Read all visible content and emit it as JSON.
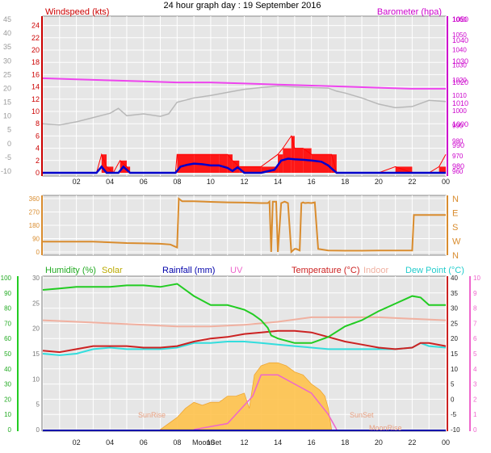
{
  "title": "24 hour graph day : 19 September 2016",
  "colors": {
    "wind_axis": "#cc0000",
    "baro_axis": "#cc00cc",
    "gust": "#ff0000",
    "wind": "#0000cc",
    "baro": "#ee44ee",
    "wind_gray": "#b8b8b8",
    "direction": "#d98c2e",
    "humidity": "#22cc22",
    "solar": "#ccbb00",
    "solar_fill": "#ffc34d",
    "rainfall": "#0000aa",
    "uv": "#ee66cc",
    "temperature": "#cc2222",
    "indoor": "#f0b0a0",
    "dewpoint": "#33dddd",
    "grid": "#ffffff",
    "plot_bg": "#e6e6e6"
  },
  "chart_data": [
    {
      "type": "line",
      "title": "24 hour graph day : 19 September 2016",
      "left_axis_label": "Windspeed (kts)",
      "right_axis_label": "Barometer (hpa)",
      "x_ticks": [
        "02",
        "04",
        "06",
        "08",
        "10",
        "12",
        "14",
        "16",
        "18",
        "20",
        "22",
        "00"
      ],
      "left_ticks": [
        "0",
        "2",
        "4",
        "6",
        "8",
        "10",
        "12",
        "14",
        "16",
        "18",
        "20",
        "22",
        "24"
      ],
      "left_ylim": [
        0,
        25
      ],
      "right_ticks": [
        "980",
        "990",
        "1000",
        "1010",
        "1020",
        "1030",
        "1040",
        "1050"
      ],
      "right_ylim": [
        977,
        1050
      ],
      "outer_left_ticks": [
        "-10",
        "-5",
        "0",
        "5",
        "10",
        "15",
        "20",
        "25",
        "30",
        "35",
        "40",
        "45"
      ],
      "outer_right_ticks": [
        "960",
        "970",
        "980",
        "990",
        "1000",
        "1010",
        "1020",
        "1030",
        "1040",
        "1050",
        "1060"
      ],
      "series": [
        {
          "name": "Barometer",
          "axis": "right",
          "x": [
            0,
            2,
            4,
            6,
            8,
            10,
            12,
            14,
            16,
            18,
            20,
            22,
            24
          ],
          "values": [
            1022,
            1021.5,
            1021,
            1020.5,
            1020,
            1020,
            1019.5,
            1019,
            1018.5,
            1018,
            1017.5,
            1017,
            1017
          ]
        },
        {
          "name": "Wind (gray)",
          "axis": "left",
          "x": [
            0,
            1,
            2,
            3,
            4,
            4.5,
            5,
            6,
            7,
            7.5,
            8,
            9,
            10,
            11,
            12,
            13,
            14,
            15,
            16,
            17,
            17.5,
            18,
            19,
            20,
            21,
            22,
            23,
            24
          ],
          "values": [
            8,
            7.8,
            8.3,
            9,
            9.7,
            10.5,
            9.3,
            9.6,
            9.2,
            9.6,
            11.5,
            12.2,
            12.6,
            13.1,
            13.6,
            13.9,
            14.1,
            14.0,
            13.9,
            13.8,
            13.3,
            13.0,
            12.2,
            11.2,
            10.6,
            10.8,
            11.8,
            11.6
          ]
        },
        {
          "name": "Gust",
          "axis": "left",
          "x": [
            0,
            3.2,
            3.5,
            3.8,
            4.2,
            4.6,
            5.0,
            5.2,
            7.9,
            8,
            9,
            10,
            10.5,
            11,
            11.3,
            11.7,
            12,
            13,
            14,
            14.3,
            14.8,
            15,
            15.5,
            16,
            17,
            17.2,
            17.5,
            18,
            19,
            20,
            21,
            22,
            23,
            23.6,
            24
          ],
          "values": [
            0,
            0,
            3,
            1,
            0,
            2,
            1,
            0,
            0,
            3,
            3,
            3,
            3,
            3,
            2,
            1,
            1,
            1,
            3,
            4,
            6,
            4,
            4,
            3,
            3,
            3,
            0,
            0,
            0,
            0,
            1,
            0,
            0,
            1,
            3
          ]
        },
        {
          "name": "Wind",
          "axis": "left",
          "x": [
            0,
            3.2,
            3.5,
            3.8,
            4.5,
            4.8,
            5.2,
            7.9,
            8.2,
            8.6,
            9,
            9.5,
            10,
            10.5,
            11,
            11.3,
            11.6,
            12,
            13,
            13.8,
            14.2,
            14.6,
            15,
            15.6,
            16,
            16.6,
            17,
            17.2,
            17.5,
            18,
            24
          ],
          "values": [
            0,
            0,
            1,
            0,
            0,
            1,
            0,
            0,
            1,
            1.3,
            1.5,
            1.4,
            1.2,
            1.2,
            0.8,
            0.3,
            0.9,
            0,
            0,
            0.5,
            2,
            2.3,
            2.2,
            2.1,
            2,
            1.8,
            1.2,
            0.7,
            0,
            0,
            0
          ]
        }
      ]
    },
    {
      "type": "line",
      "title": "",
      "y_ticks": [
        "0",
        "90",
        "180",
        "270",
        "360"
      ],
      "ylim": [
        0,
        360
      ],
      "right_labels": [
        "N",
        "W",
        "S",
        "E",
        "N"
      ],
      "series": [
        {
          "name": "Wind direction",
          "x": [
            0,
            1,
            2,
            3,
            4,
            5,
            6,
            7,
            7.6,
            7.8,
            8,
            8.1,
            8.3,
            9,
            10,
            11,
            12,
            13,
            13.4,
            13.5,
            13.6,
            13.7,
            13.9,
            14,
            14.2,
            14.4,
            14.5,
            14.6,
            14.8,
            15,
            15.1,
            15.3,
            15.4,
            15.5,
            15.6,
            15.8,
            16,
            16.2,
            16.4,
            17,
            18,
            19,
            20,
            21,
            21.5,
            22,
            22.1,
            23,
            24
          ],
          "values": [
            70,
            70,
            70,
            70,
            65,
            60,
            58,
            55,
            50,
            40,
            30,
            360,
            342,
            342,
            338,
            335,
            333,
            330,
            330,
            340,
            0,
            340,
            340,
            0,
            330,
            340,
            335,
            330,
            0,
            20,
            20,
            10,
            330,
            335,
            330,
            332,
            330,
            335,
            20,
            10,
            8,
            8,
            10,
            10,
            10,
            10,
            250,
            250,
            250
          ]
        }
      ]
    },
    {
      "type": "line",
      "title": "",
      "legend": [
        "Humidity (%)",
        "Solar",
        "Rainfall (mm)",
        "UV",
        "Temperature (°C)",
        "Indoor",
        "Dew Point (°C)"
      ],
      "x_ticks": [
        "02",
        "04",
        "06",
        "08",
        "10",
        "12",
        "14",
        "16",
        "18",
        "20",
        "22",
        "00"
      ],
      "x_ticks_extra": [
        "MoonSet"
      ],
      "annotations": [
        "SunRise",
        "SunSet",
        "MoonRise"
      ],
      "left_outer_ticks": [
        "0",
        "10",
        "20",
        "30",
        "40",
        "50",
        "60",
        "70",
        "80",
        "90",
        "100"
      ],
      "left_inner_ticks": [
        "0",
        "5",
        "10",
        "15",
        "20",
        "25",
        "30"
      ],
      "right_inner_ticks": [
        "-10",
        "-5",
        "0",
        "5",
        "10",
        "15",
        "20",
        "25",
        "30",
        "35",
        "40"
      ],
      "right_outer_ticks": [
        "0",
        "1",
        "2",
        "3",
        "4",
        "5",
        "6",
        "7",
        "8",
        "9",
        "10"
      ],
      "temp_ylim": [
        -10,
        40
      ],
      "series": [
        {
          "name": "Humidity",
          "axis": "humidity",
          "x": [
            0,
            1,
            2,
            3,
            4,
            5,
            6,
            7,
            8,
            9,
            10,
            11,
            12,
            12.5,
            13,
            13.4,
            13.6,
            14,
            15,
            16,
            17,
            18,
            19,
            20,
            21,
            22,
            22.5,
            23,
            24
          ],
          "values": [
            92,
            93,
            94,
            94,
            94,
            95,
            95,
            94,
            96,
            88,
            82,
            82,
            79,
            76,
            72,
            67,
            62,
            60,
            57,
            57,
            61,
            68,
            72,
            78,
            83,
            88,
            87,
            82,
            82
          ]
        },
        {
          "name": "Temperature",
          "axis": "temp",
          "x": [
            0,
            1,
            2,
            3,
            4,
            5,
            6,
            7,
            8,
            9,
            10,
            11,
            12,
            13,
            14,
            15,
            16,
            17,
            18,
            19,
            20,
            21,
            22,
            22.5,
            23,
            24
          ],
          "values": [
            16,
            15.5,
            16.5,
            17.5,
            17.5,
            17.5,
            17,
            17,
            17.5,
            19,
            20,
            20.5,
            21.5,
            22,
            22.5,
            22.5,
            22,
            20.5,
            19,
            18,
            17,
            16.5,
            17,
            18.5,
            18.5,
            17.5
          ]
        },
        {
          "name": "Dew point",
          "axis": "temp",
          "x": [
            0,
            1,
            2,
            3,
            4,
            5,
            6,
            7,
            8,
            9,
            10,
            11,
            12,
            13,
            14,
            15,
            16,
            17,
            18,
            19,
            20,
            21,
            22,
            22.5,
            23,
            24
          ],
          "values": [
            15,
            14.5,
            15,
            16.5,
            17,
            16.5,
            16.5,
            16.5,
            17,
            18.5,
            18.5,
            19,
            19,
            18.5,
            18,
            17.5,
            17,
            16.5,
            16.5,
            16.5,
            16.5,
            16.5,
            17,
            18.5,
            17.5,
            17
          ]
        },
        {
          "name": "Indoor",
          "axis": "temp",
          "x": [
            0,
            2,
            4,
            6,
            8,
            10,
            12,
            14,
            16,
            18,
            20,
            22,
            24
          ],
          "values": [
            26,
            25.5,
            25,
            24.5,
            24,
            24,
            24.5,
            25.5,
            27,
            27,
            27,
            26.5,
            26
          ]
        },
        {
          "name": "Solar",
          "axis": "temp",
          "x": [
            7,
            7.5,
            8,
            8.5,
            9,
            9.5,
            10,
            10.5,
            11,
            11.5,
            12,
            12.3,
            12.6,
            13,
            13.5,
            14,
            14.5,
            15,
            15.5,
            16,
            16.5,
            16.8,
            17,
            17.2
          ],
          "values": [
            -10,
            -8,
            -6,
            -3,
            -1,
            -2,
            -1,
            -1,
            1,
            1,
            2,
            -3,
            8,
            11,
            12,
            12,
            11,
            9,
            8,
            5,
            3,
            1,
            -3,
            -10
          ]
        },
        {
          "name": "UV",
          "axis": "temp",
          "x": [
            9,
            10,
            11,
            11.5,
            12,
            12.5,
            13,
            14,
            15,
            16,
            17,
            17.5
          ],
          "values": [
            -10,
            -9,
            -8,
            -5,
            -2,
            1,
            8,
            8,
            5,
            2,
            -5,
            -10
          ]
        }
      ]
    }
  ]
}
